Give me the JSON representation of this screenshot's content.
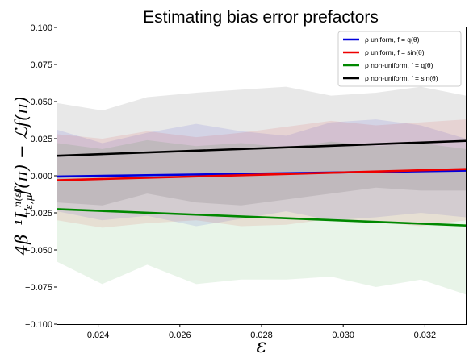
{
  "chart_data": {
    "type": "line",
    "title": "Estimating bias error prefactors",
    "xlabel": "ε",
    "ylabel": "4β⁻¹L^{n(ε)}_{ε,μ}f(π) − ℒf(π)",
    "xlim": [
      0.023,
      0.033
    ],
    "ylim": [
      -0.1,
      0.1
    ],
    "xticks": [
      "0.024",
      "0.026",
      "0.028",
      "0.030",
      "0.032"
    ],
    "yticks": [
      "−0.100",
      "−0.075",
      "−0.050",
      "−0.025",
      "0.000",
      "0.025",
      "0.050",
      "0.075",
      "0.100"
    ],
    "grid": false,
    "legend_position": "top-right",
    "legend_entries": [
      "ρ uniform, f = q(θ)",
      "ρ uniform, f = sin(θ)",
      "ρ non-uniform, f = q(θ)",
      "ρ non-uniform, f = sin(θ)"
    ],
    "series": [
      {
        "name": "ρ uniform, f = q(θ)",
        "color": "#0000dd",
        "line": {
          "x": [
            0.023,
            0.033
          ],
          "y": [
            -0.0005,
            0.0035
          ]
        },
        "band": {
          "x": [
            0.023,
            0.0241,
            0.0252,
            0.0264,
            0.0275,
            0.0286,
            0.0297,
            0.0308,
            0.0319,
            0.033
          ],
          "upper": [
            0.031,
            0.022,
            0.029,
            0.035,
            0.03,
            0.027,
            0.036,
            0.038,
            0.034,
            0.025
          ],
          "lower": [
            -0.024,
            -0.03,
            -0.027,
            -0.034,
            -0.029,
            -0.024,
            -0.03,
            -0.028,
            -0.025,
            -0.028
          ]
        }
      },
      {
        "name": "ρ uniform, f = sin(θ)",
        "color": "#ee0000",
        "line": {
          "x": [
            0.023,
            0.033
          ],
          "y": [
            -0.003,
            0.0045
          ]
        },
        "band": {
          "x": [
            0.023,
            0.0241,
            0.0252,
            0.0264,
            0.0275,
            0.0286,
            0.0297,
            0.0308,
            0.0319,
            0.033
          ],
          "upper": [
            0.028,
            0.025,
            0.03,
            0.026,
            0.029,
            0.033,
            0.037,
            0.034,
            0.036,
            0.038
          ],
          "lower": [
            -0.03,
            -0.035,
            -0.032,
            -0.03,
            -0.034,
            -0.033,
            -0.029,
            -0.031,
            -0.034,
            -0.03
          ]
        }
      },
      {
        "name": "ρ non-uniform, f = q(θ)",
        "color": "#008800",
        "line": {
          "x": [
            0.023,
            0.033
          ],
          "y": [
            -0.0225,
            -0.0335
          ]
        },
        "band": {
          "x": [
            0.023,
            0.0241,
            0.0252,
            0.0264,
            0.0275,
            0.0286,
            0.0297,
            0.0308,
            0.0319,
            0.033
          ],
          "upper": [
            0.022,
            0.018,
            0.024,
            0.02,
            0.022,
            0.019,
            0.023,
            0.02,
            0.022,
            0.018
          ],
          "lower": [
            -0.058,
            -0.073,
            -0.06,
            -0.073,
            -0.07,
            -0.07,
            -0.068,
            -0.075,
            -0.07,
            -0.08
          ]
        }
      },
      {
        "name": "ρ non-uniform, f = sin(θ)",
        "color": "#000000",
        "line": {
          "x": [
            0.023,
            0.033
          ],
          "y": [
            0.0135,
            0.0235
          ]
        },
        "band": {
          "x": [
            0.023,
            0.0241,
            0.0252,
            0.0264,
            0.0275,
            0.0286,
            0.0297,
            0.0308,
            0.0319,
            0.033
          ],
          "upper": [
            0.049,
            0.044,
            0.053,
            0.056,
            0.058,
            0.06,
            0.054,
            0.056,
            0.06,
            0.054
          ],
          "lower": [
            -0.018,
            -0.02,
            -0.012,
            -0.018,
            -0.02,
            -0.016,
            -0.012,
            -0.008,
            -0.01,
            -0.01
          ]
        }
      }
    ]
  }
}
